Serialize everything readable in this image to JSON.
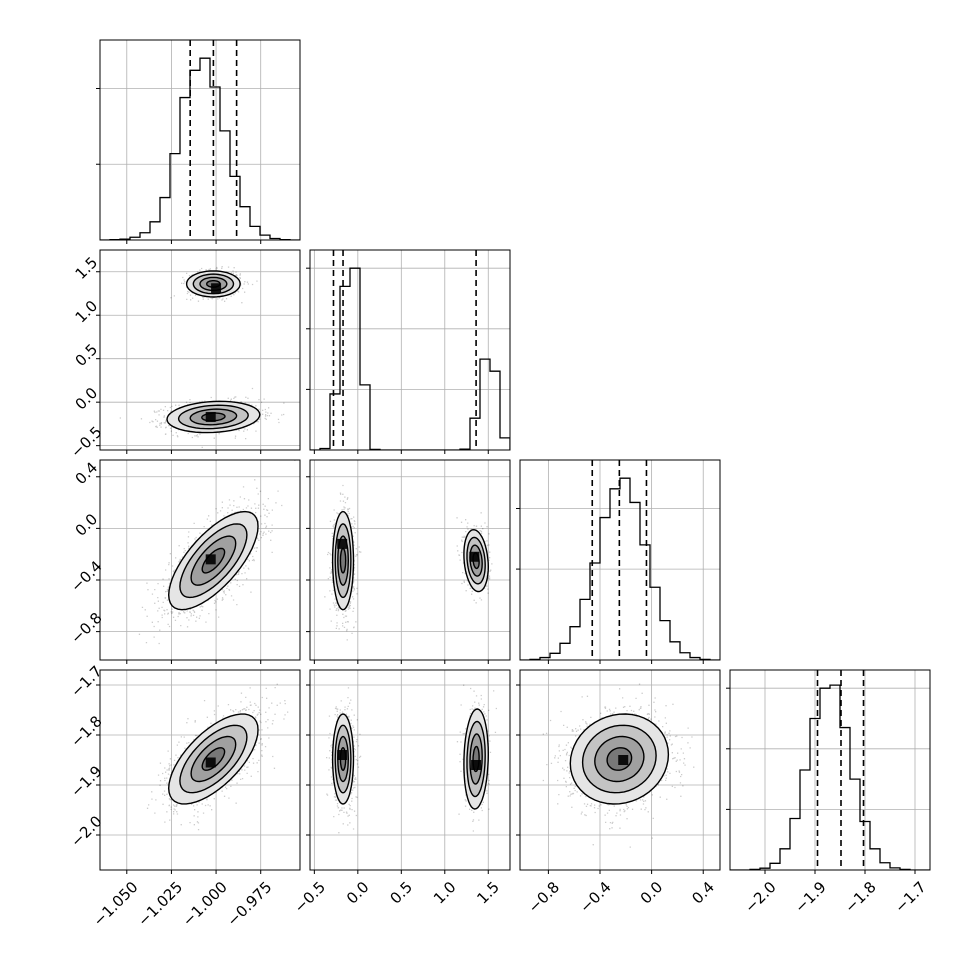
{
  "colors": {
    "background": "#ffffff",
    "axes": "#000000",
    "grid": "#b0b0b0",
    "scatter": "#000000",
    "density": "#000000",
    "contour": "#000000"
  },
  "chart_data": {
    "type": "corner",
    "title": "",
    "parameters": [
      {
        "id": "p0",
        "range": [
          -1.065,
          -0.953
        ],
        "ticks": [
          -1.05,
          -1.025,
          -1.0,
          -0.975
        ],
        "tick_labels": [
          "−1.050",
          "−1.025",
          "−1.000",
          "−0.975"
        ],
        "quantiles": [
          -1.0145,
          -1.0015,
          -0.9885
        ]
      },
      {
        "id": "p1",
        "range": [
          -0.55,
          1.75
        ],
        "ticks": [
          -0.5,
          0.0,
          0.5,
          1.0,
          1.5
        ],
        "tick_labels": [
          "−0.5",
          "0.0",
          "0.5",
          "1.0",
          "1.5"
        ],
        "quantiles": [
          -0.28,
          -0.17,
          1.36
        ]
      },
      {
        "id": "p2",
        "range": [
          -1.02,
          0.53
        ],
        "ticks": [
          -0.8,
          -0.4,
          0.0,
          0.4
        ],
        "tick_labels": [
          "−0.8",
          "−0.4",
          "0.0",
          "0.4"
        ],
        "quantiles": [
          -0.46,
          -0.25,
          -0.04
        ]
      },
      {
        "id": "p3",
        "range": [
          -2.07,
          -1.67
        ],
        "ticks": [
          -2.0,
          -1.9,
          -1.8,
          -1.7
        ],
        "tick_labels": [
          "−2.0",
          "−1.9",
          "−1.8",
          "−1.7"
        ],
        "quantiles": [
          -1.895,
          -1.848,
          -1.803
        ]
      }
    ],
    "histograms": [
      {
        "param": "p0",
        "bins": [
          -1.065,
          -0.953
        ],
        "counts": [
          0,
          1,
          3,
          9,
          24,
          60,
          140,
          285,
          470,
          560,
          600,
          505,
          360,
          210,
          110,
          45,
          16,
          5,
          1,
          0
        ],
        "ylim": [
          0,
          660
        ],
        "yticks": [
          0,
          250,
          500
        ]
      },
      {
        "param": "p1",
        "bins": [
          -0.55,
          1.75
        ],
        "counts": [
          0,
          5,
          185,
          540,
          600,
          215,
          2,
          0,
          0,
          0,
          0,
          0,
          0,
          0,
          0,
          3,
          105,
          300,
          260,
          40
        ],
        "ylim": [
          0,
          660
        ],
        "yticks": [
          0,
          200,
          400,
          600
        ]
      },
      {
        "param": "p2",
        "bins": [
          -1.02,
          0.53
        ],
        "counts": [
          0,
          2,
          8,
          22,
          55,
          110,
          200,
          320,
          470,
          565,
          600,
          520,
          380,
          240,
          130,
          60,
          24,
          8,
          2,
          0
        ],
        "ylim": [
          0,
          660
        ],
        "yticks": [
          0,
          300,
          500
        ]
      },
      {
        "param": "p3",
        "bins": [
          -2.07,
          -1.67
        ],
        "counts": [
          0,
          0,
          2,
          6,
          22,
          70,
          170,
          330,
          500,
          600,
          610,
          470,
          300,
          160,
          70,
          24,
          7,
          2,
          0,
          0
        ],
        "ylim": [
          0,
          660
        ],
        "yticks": [
          0,
          200,
          400,
          600
        ]
      }
    ],
    "pairs": [
      {
        "x": "p0",
        "y": "p1",
        "blobs": [
          {
            "cx": -1.0015,
            "cy": -0.17,
            "sx": 0.013,
            "sy": 0.09,
            "rho": 0.15,
            "weight": 0.66,
            "peak": [
              -1.003,
              -0.17
            ]
          },
          {
            "cx": -1.0015,
            "cy": 1.36,
            "sx": 0.0075,
            "sy": 0.075,
            "rho": 0.0,
            "weight": 0.34,
            "peak": [
              -1.0,
              1.31
            ]
          }
        ]
      },
      {
        "x": "p0",
        "y": "p2",
        "blobs": [
          {
            "cx": -1.0015,
            "cy": -0.25,
            "sx": 0.0125,
            "sy": 0.19,
            "rho": 0.7,
            "weight": 1.0,
            "peak": [
              -1.003,
              -0.24
            ]
          }
        ]
      },
      {
        "x": "p1",
        "y": "p2",
        "blobs": [
          {
            "cx": -0.17,
            "cy": -0.25,
            "sx": 0.06,
            "sy": 0.19,
            "rho": 0.0,
            "weight": 0.66,
            "peak": [
              -0.18,
              -0.12
            ]
          },
          {
            "cx": 1.36,
            "cy": -0.25,
            "sx": 0.07,
            "sy": 0.12,
            "rho": -0.2,
            "weight": 0.34,
            "peak": [
              1.34,
              -0.22
            ]
          }
        ]
      },
      {
        "x": "p0",
        "y": "p3",
        "blobs": [
          {
            "cx": -1.0015,
            "cy": -1.848,
            "sx": 0.0125,
            "sy": 0.045,
            "rho": 0.65,
            "weight": 1.0,
            "peak": [
              -1.003,
              -1.855
            ]
          }
        ]
      },
      {
        "x": "p1",
        "y": "p3",
        "blobs": [
          {
            "cx": -0.17,
            "cy": -1.848,
            "sx": 0.06,
            "sy": 0.045,
            "rho": 0.0,
            "weight": 0.66,
            "peak": [
              -0.18,
              -1.84
            ]
          },
          {
            "cx": 1.36,
            "cy": -1.848,
            "sx": 0.07,
            "sy": 0.05,
            "rho": 0.1,
            "weight": 0.34,
            "peak": [
              1.36,
              -1.86
            ]
          }
        ]
      },
      {
        "x": "p2",
        "y": "p3",
        "blobs": [
          {
            "cx": -0.25,
            "cy": -1.848,
            "sx": 0.19,
            "sy": 0.045,
            "rho": 0.1,
            "weight": 1.0,
            "peak": [
              -0.22,
              -1.85
            ]
          }
        ]
      }
    ],
    "contour_levels_sigma": [
      0.5,
      1.0,
      1.5,
      2.0
    ],
    "grid": true,
    "legend": "none"
  }
}
